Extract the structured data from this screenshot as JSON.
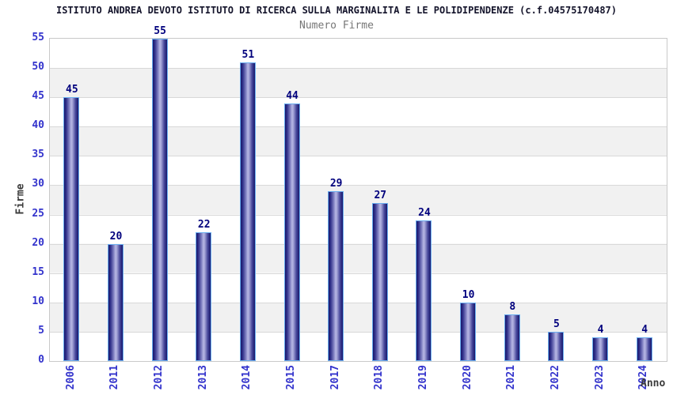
{
  "chart_data": {
    "type": "bar",
    "title": "ISTITUTO ANDREA DEVOTO ISTITUTO DI RICERCA SULLA MARGINALITA E LE POLIDIPENDENZE (c.f.04575170487)",
    "subtitle": "Numero Firme",
    "xlabel": "Anno",
    "ylabel": "Firme",
    "categories": [
      "2006",
      "2011",
      "2012",
      "2013",
      "2014",
      "2015",
      "2017",
      "2018",
      "2019",
      "2020",
      "2021",
      "2022",
      "2023",
      "2024"
    ],
    "values": [
      45,
      20,
      55,
      22,
      51,
      44,
      29,
      27,
      24,
      10,
      8,
      5,
      4,
      4
    ],
    "ylim": [
      0,
      55
    ],
    "y_ticks": [
      0,
      5,
      10,
      15,
      20,
      25,
      30,
      35,
      40,
      45,
      50,
      55
    ],
    "grid": true,
    "legend_position": "none"
  },
  "colors": {
    "title": "#14142b",
    "subtitle": "#767676",
    "tick_label": "#3333cc",
    "value_label": "#00007d",
    "axis_title": "#3a3a3a",
    "grid_line": "#d8d8d8",
    "plot_border": "#c9c9c9",
    "band_stripe": "#f1f1f1",
    "bar_dark": "#17176b",
    "bar_light": "#b7b7e4",
    "bar_border": "#6aaef0"
  }
}
